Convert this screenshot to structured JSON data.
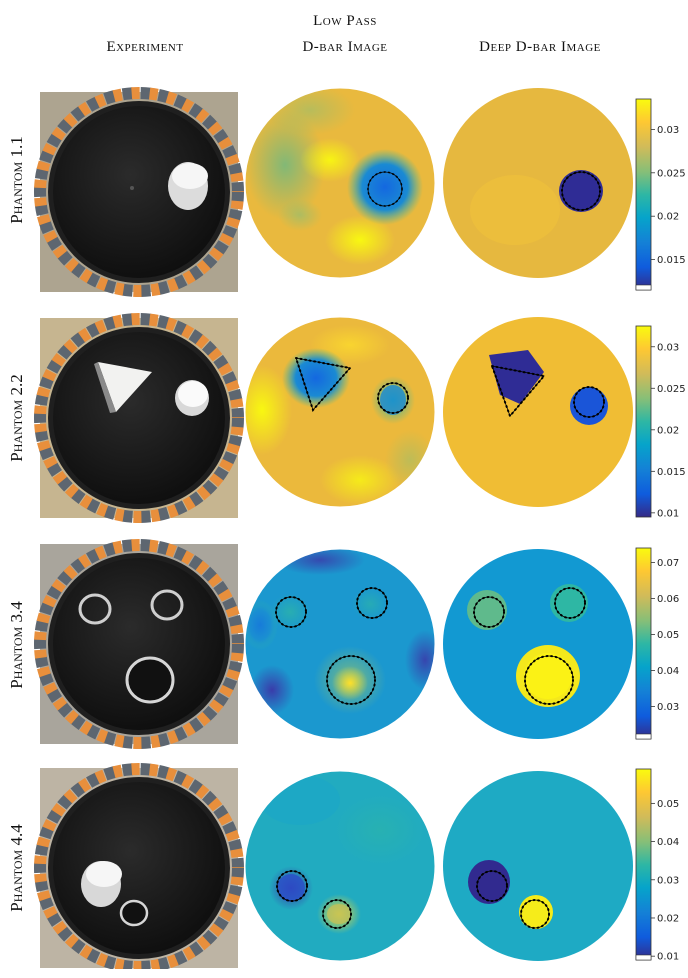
{
  "columns": {
    "experiment": "Experiment",
    "lowpass_line1": "Low Pass",
    "lowpass_line2": "D-bar Image",
    "deep": "Deep D-bar Image"
  },
  "rows": [
    {
      "label": "Phantom 1.1",
      "colorbar_ticks": [
        "0.03",
        "0.025",
        "0.02",
        "0.015"
      ],
      "colorbar_values": [
        0.03,
        0.025,
        0.02,
        0.015
      ],
      "colorbar_range": [
        0.0115,
        0.0335
      ]
    },
    {
      "label": "Phantom 2.2",
      "colorbar_ticks": [
        "0.03",
        "0.025",
        "0.02",
        "0.015",
        "0.01"
      ],
      "colorbar_values": [
        0.03,
        0.025,
        0.02,
        0.015,
        0.01
      ],
      "colorbar_range": [
        0.0095,
        0.0325
      ]
    },
    {
      "label": "Phantom 3.4",
      "colorbar_ticks": [
        "0.07",
        "0.06",
        "0.05",
        "0.04",
        "0.03"
      ],
      "colorbar_values": [
        0.07,
        0.06,
        0.05,
        0.04,
        0.03
      ],
      "colorbar_range": [
        0.021,
        0.074
      ]
    },
    {
      "label": "Phantom 4.4",
      "colorbar_ticks": [
        "0.05",
        "0.04",
        "0.03",
        "0.02",
        "0.01"
      ],
      "colorbar_values": [
        0.05,
        0.04,
        0.03,
        0.02,
        0.01
      ],
      "colorbar_range": [
        0.009,
        0.059
      ]
    }
  ],
  "colors": {
    "parula": [
      "#352a87",
      "#0f5cdd",
      "#1481d6",
      "#06a4ca",
      "#2eb7a4",
      "#87bf77",
      "#d1bb59",
      "#fec832",
      "#f9fb0e"
    ]
  }
}
